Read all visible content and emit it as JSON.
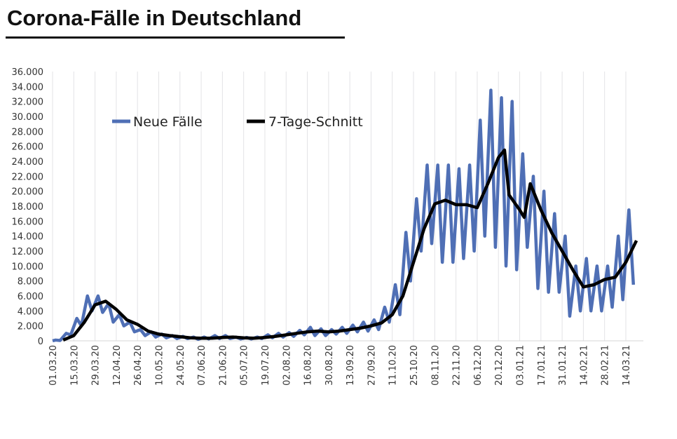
{
  "chart_data": {
    "type": "line",
    "title": "Corona-Fälle in Deutschland",
    "xlabel": "",
    "ylabel": "",
    "ylim": [
      0,
      36000
    ],
    "y_ticks": [
      "0",
      "2.000",
      "4.000",
      "6.000",
      "8.000",
      "10.000",
      "12.000",
      "14.000",
      "16.000",
      "18.000",
      "20.000",
      "22.000",
      "24.000",
      "26.000",
      "28.000",
      "30.000",
      "32.000",
      "34.000",
      "36.000"
    ],
    "x_ticks": [
      "01.03.20",
      "15.03.20",
      "29.03.20",
      "12.04.20",
      "26.04.20",
      "10.05.20",
      "24.05.20",
      "07.06.20",
      "21.06.20",
      "05.07.20",
      "19.07.20",
      "02.08.20",
      "16.08.20",
      "30.08.20",
      "13.09.20",
      "27.09.20",
      "11.10.20",
      "25.10.20",
      "08.11.20",
      "22.11.20",
      "06.12.20",
      "20.12.20",
      "03.01.21",
      "17.01.21",
      "31.01.21",
      "14.02.21",
      "28.02.21",
      "14.03.21"
    ],
    "grid": "vertical",
    "legend": {
      "placement": "top-left",
      "entries": [
        "Neue Fälle",
        "7-Tage-Schnitt"
      ]
    },
    "colors": {
      "Neue Fälle": "#4f6fb5",
      "7-Tage-Schnitt": "#000000"
    },
    "series": [
      {
        "name": "Neue Fälle",
        "start": "01.03.20",
        "note_pattern": "weekly peak (day 2) and trough (day 5) values",
        "weekly_peaks": [
          100,
          1000,
          3000,
          6000,
          6000,
          5000,
          3500,
          2500,
          1500,
          1200,
          900,
          700,
          600,
          500,
          500,
          700,
          700,
          500,
          450,
          500,
          800,
          1000,
          1100,
          1400,
          1800,
          1600,
          1500,
          1800,
          2100,
          2500,
          2800,
          4500,
          7500,
          14500,
          19000,
          23500,
          23500,
          23500,
          23000,
          23500,
          29500,
          33500,
          32500,
          32000,
          25000,
          22000,
          20000,
          17000,
          14000,
          10000,
          11000,
          10000,
          10000,
          14000,
          17500
        ],
        "weekly_troughs": [
          50,
          800,
          2000,
          4000,
          3800,
          2500,
          2000,
          1200,
          700,
          500,
          400,
          300,
          300,
          200,
          250,
          300,
          300,
          250,
          250,
          300,
          400,
          500,
          600,
          800,
          700,
          700,
          900,
          1000,
          1200,
          1300,
          1500,
          2500,
          3500,
          8000,
          12000,
          13000,
          10500,
          10500,
          11000,
          12000,
          14000,
          12500,
          10000,
          9500,
          12500,
          7000,
          6500,
          6500,
          3300,
          4000,
          4000,
          4000,
          4500,
          5500,
          7500
        ]
      },
      {
        "name": "7-Tage-Schnitt",
        "x": [
          "08.03.20",
          "15.03.20",
          "22.03.20",
          "29.03.20",
          "05.04.20",
          "12.04.20",
          "19.04.20",
          "26.04.20",
          "03.05.20",
          "10.05.20",
          "17.05.20",
          "24.05.20",
          "31.05.20",
          "07.06.20",
          "14.06.20",
          "21.06.20",
          "28.06.20",
          "05.07.20",
          "12.07.20",
          "19.07.20",
          "26.07.20",
          "02.08.20",
          "09.08.20",
          "16.08.20",
          "23.08.20",
          "30.08.20",
          "06.09.20",
          "13.09.20",
          "20.09.20",
          "27.09.20",
          "04.10.20",
          "11.10.20",
          "18.10.20",
          "25.10.20",
          "01.11.20",
          "08.11.20",
          "15.11.20",
          "22.11.20",
          "29.11.20",
          "06.12.20",
          "13.12.20",
          "20.12.20",
          "24.12.20",
          "27.12.20",
          "03.01.21",
          "06.01.21",
          "10.01.21",
          "17.01.21",
          "24.01.21",
          "31.01.21",
          "07.02.21",
          "14.02.21",
          "21.02.21",
          "28.02.21",
          "07.03.21",
          "14.03.21",
          "21.03.21"
        ],
        "values": [
          100,
          700,
          2500,
          4800,
          5300,
          4200,
          2800,
          2200,
          1300,
          900,
          700,
          550,
          400,
          350,
          350,
          450,
          500,
          400,
          350,
          450,
          600,
          800,
          1000,
          1200,
          1300,
          1200,
          1300,
          1500,
          1700,
          2000,
          2400,
          3500,
          6000,
          10500,
          15000,
          18300,
          18800,
          18200,
          18200,
          17800,
          21000,
          24500,
          25500,
          19500,
          17500,
          16500,
          21000,
          17500,
          14500,
          12000,
          9500,
          7200,
          7500,
          8200,
          8500,
          10500,
          13400
        ]
      }
    ]
  }
}
